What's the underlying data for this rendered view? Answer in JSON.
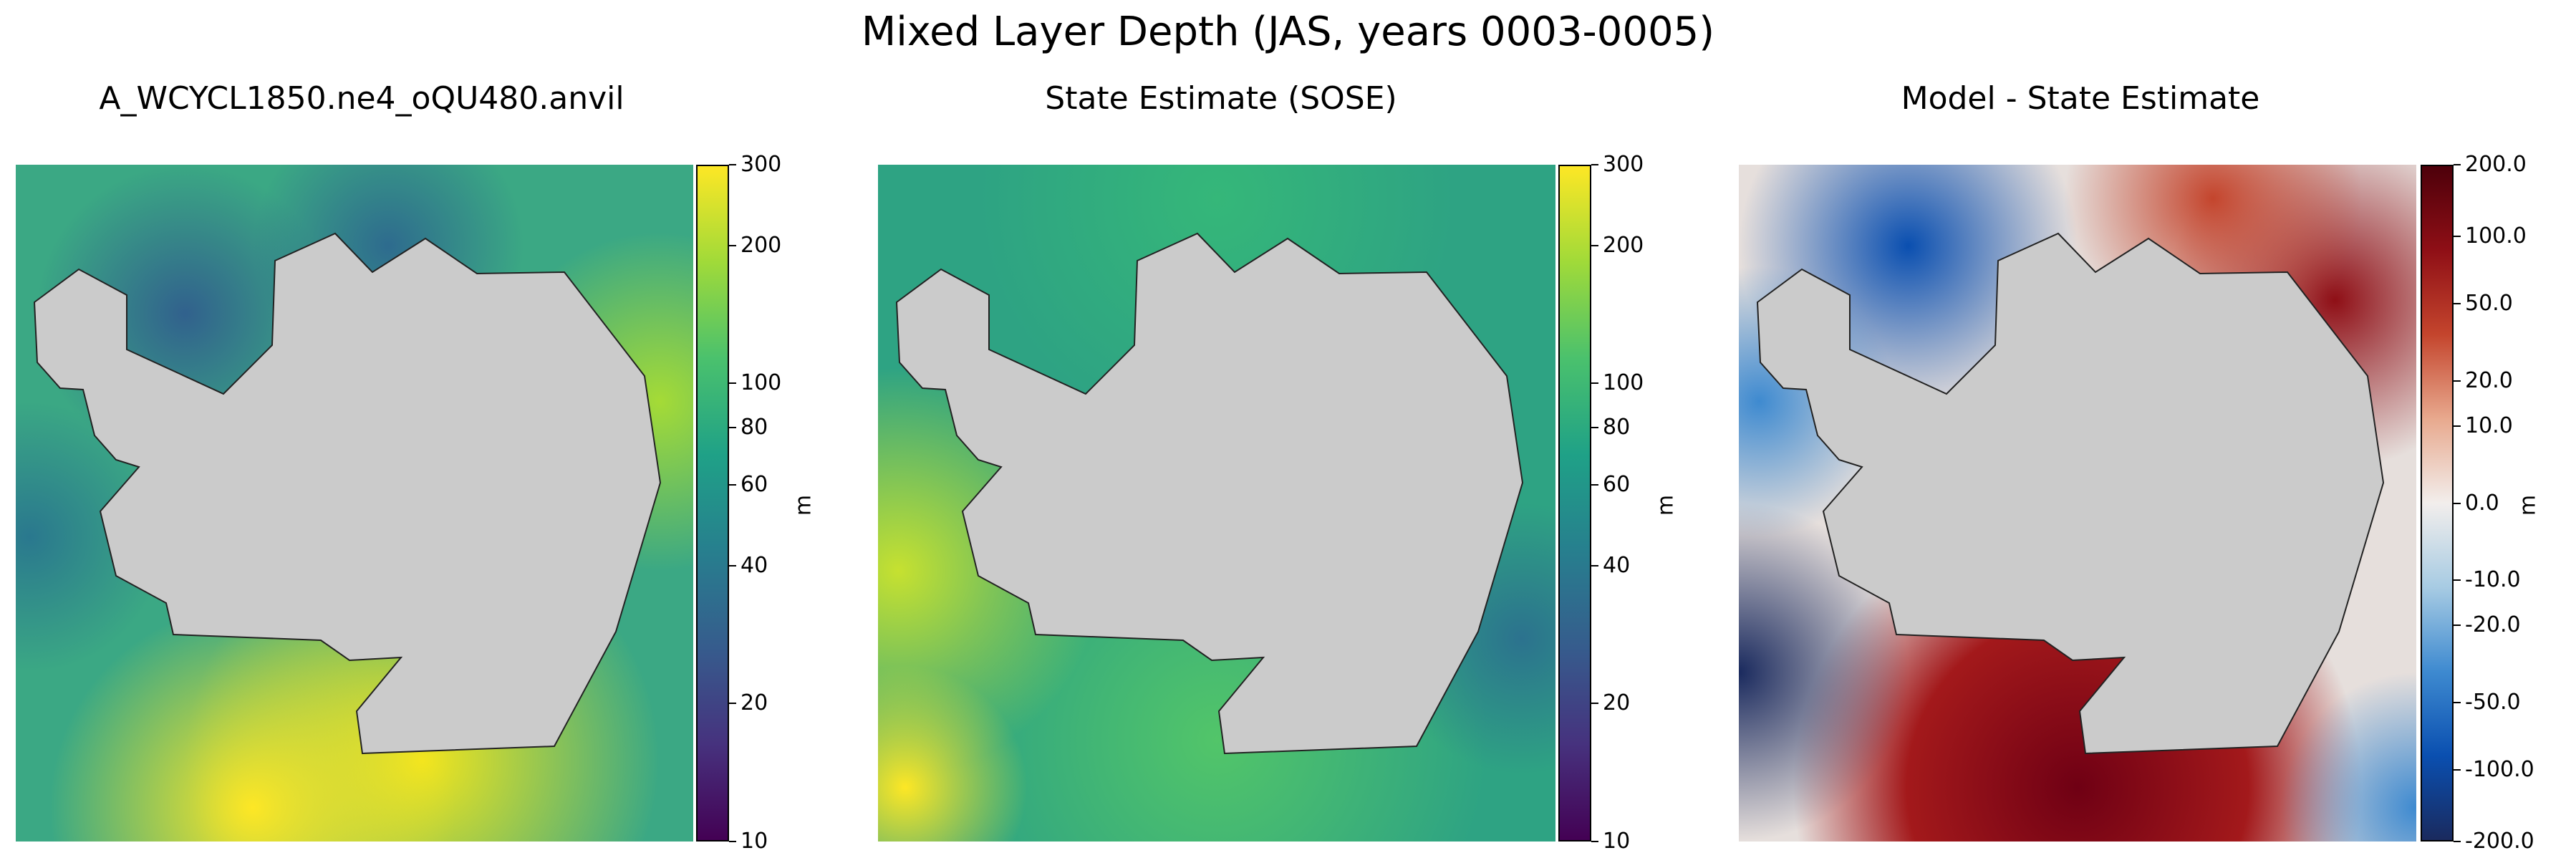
{
  "title": "Mixed Layer Depth (JAS, years 0003-0005)",
  "colors": {
    "land": "#cbcbcb",
    "viridis": [
      "#440154",
      "#46327e",
      "#365c8d",
      "#277f8e",
      "#1fa187",
      "#4ac16d",
      "#a0da39",
      "#fde725"
    ],
    "diverging": [
      "#1a2a5e",
      "#0a4fb0",
      "#3e8ad0",
      "#a7cbe3",
      "#f2eeec",
      "#e8a98e",
      "#c4452d",
      "#8f0f16",
      "#4d000a"
    ]
  },
  "panels": [
    {
      "title": "A_WCYCL1850.ne4_oQU480.anvil",
      "colorbar": {
        "unit": "m",
        "scale": "log",
        "ticks": [
          "300",
          "200",
          "100",
          "80",
          "60",
          "40",
          "20",
          "10"
        ]
      }
    },
    {
      "title": "State Estimate (SOSE)",
      "colorbar": {
        "unit": "m",
        "scale": "log",
        "ticks": [
          "300",
          "200",
          "100",
          "80",
          "60",
          "40",
          "20",
          "10"
        ]
      }
    },
    {
      "title": "Model - State Estimate",
      "colorbar": {
        "unit": "m",
        "scale": "symlog",
        "ticks": [
          "200.0",
          "100.0",
          "50.0",
          "20.0",
          "10.0",
          "0.0",
          "-10.0",
          "-20.0",
          "-50.0",
          "-100.0",
          "-200.0"
        ]
      }
    }
  ],
  "chart_data": [
    {
      "type": "heatmap",
      "title": "A_WCYCL1850.ne4_oQU480.anvil",
      "variable": "Mixed Layer Depth",
      "colorbar_label": "m",
      "colorbar_range": [
        10,
        300
      ],
      "colorbar_scale": "log",
      "colorbar_ticks": [
        10,
        20,
        40,
        60,
        80,
        100,
        200,
        300
      ],
      "colormap": "viridis"
    },
    {
      "type": "heatmap",
      "title": "State Estimate (SOSE)",
      "variable": "Mixed Layer Depth",
      "colorbar_label": "m",
      "colorbar_range": [
        10,
        300
      ],
      "colorbar_scale": "log",
      "colorbar_ticks": [
        10,
        20,
        40,
        60,
        80,
        100,
        200,
        300
      ],
      "colormap": "viridis"
    },
    {
      "type": "heatmap",
      "title": "Model - State Estimate",
      "variable": "Mixed Layer Depth difference",
      "colorbar_label": "m",
      "colorbar_range": [
        -200,
        200
      ],
      "colorbar_scale": "symlog",
      "colorbar_ticks": [
        -200,
        -100,
        -50,
        -20,
        -10,
        0,
        10,
        20,
        50,
        100,
        200
      ],
      "colormap": "diverging blue-white-red"
    }
  ]
}
